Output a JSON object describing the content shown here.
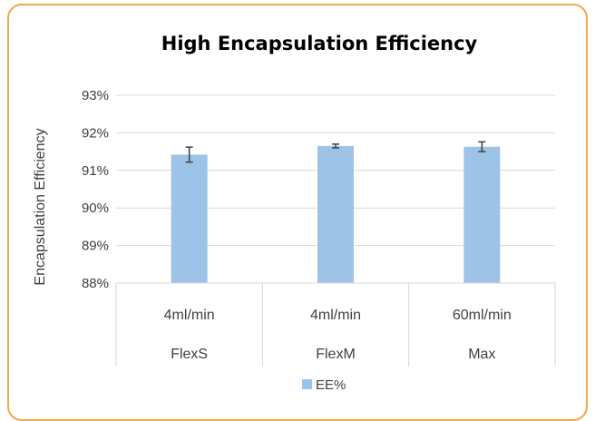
{
  "chart_data": {
    "type": "bar",
    "title": "High Encapsulation Efficiency",
    "ylabel": "Encapsulation Efficiency",
    "xlabel": "",
    "ylim": [
      88,
      93
    ],
    "yticks": [
      "88%",
      "89%",
      "90%",
      "91%",
      "92%",
      "93%"
    ],
    "categories": [
      {
        "rate": "4ml/min",
        "device": "FlexS"
      },
      {
        "rate": "4ml/min",
        "device": "FlexM"
      },
      {
        "rate": "60ml/min",
        "device": "Max"
      }
    ],
    "series": [
      {
        "name": "EE%",
        "values": [
          91.42,
          91.65,
          91.63
        ],
        "errors": [
          0.2,
          0.05,
          0.13
        ]
      }
    ],
    "colors": {
      "bar": "#9dc3e6",
      "error": "#404040",
      "grid": "#d9d9d9",
      "frame": "#f0a94a"
    },
    "grid": true,
    "legend": "bottom"
  }
}
